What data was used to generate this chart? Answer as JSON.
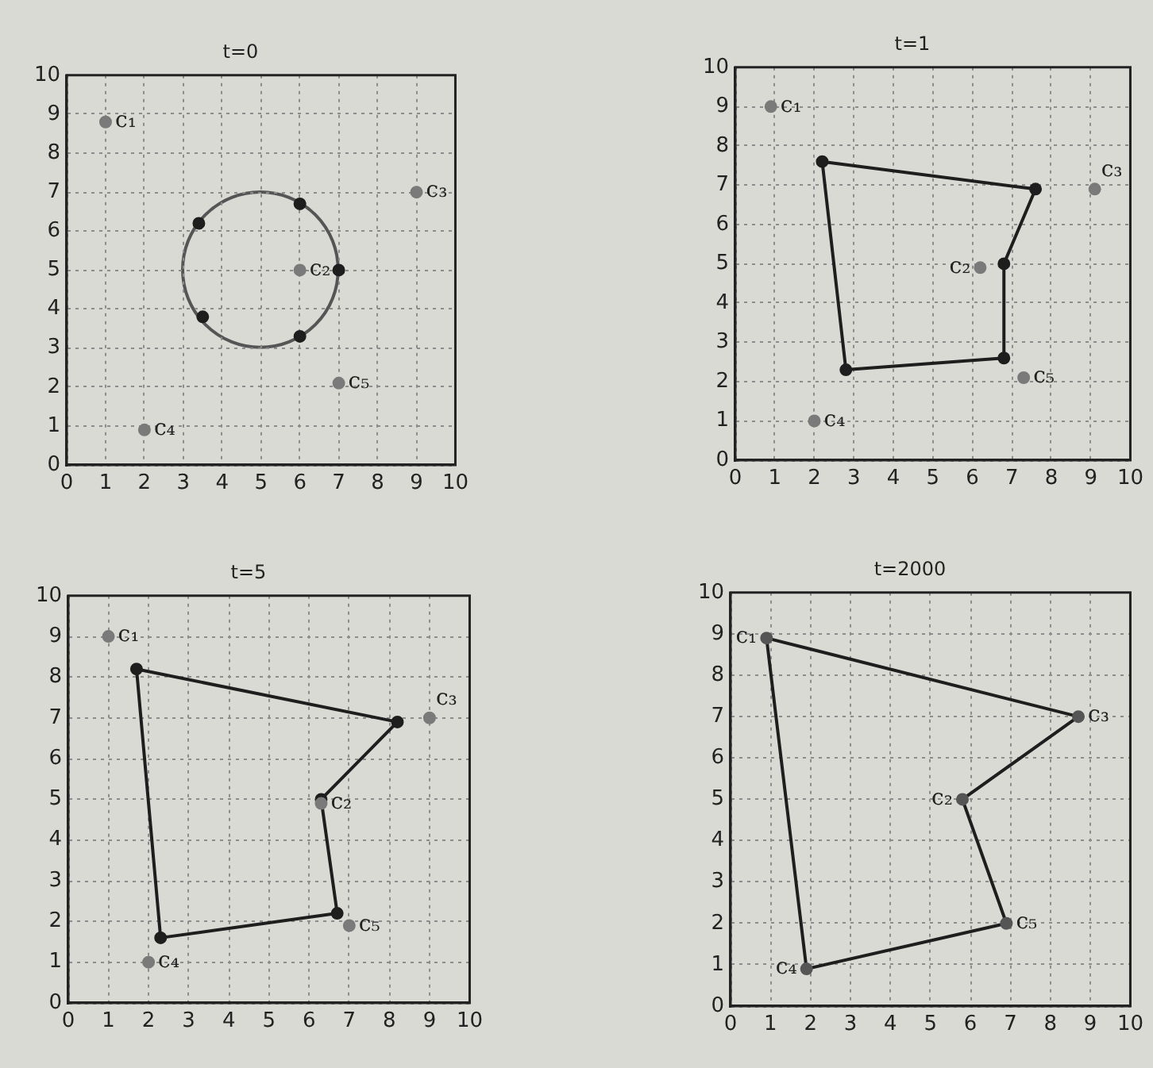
{
  "chart_data": [
    {
      "type": "scatter",
      "title": "t=0",
      "xlim": [
        0,
        10
      ],
      "ylim": [
        0,
        10
      ],
      "xticks": [
        0,
        1,
        2,
        3,
        4,
        5,
        6,
        7,
        8,
        9,
        10
      ],
      "yticks": [
        0,
        1,
        2,
        3,
        4,
        5,
        6,
        7,
        8,
        9,
        10
      ],
      "grid": true,
      "series": [
        {
          "type": "scatter",
          "color": "#1e1e1e",
          "marker": "circle",
          "x": [
            3.4,
            6,
            7,
            6,
            3.5
          ],
          "values": [
            6.2,
            6.7,
            5,
            3.3,
            3.8
          ]
        },
        {
          "type": "scatter",
          "color": "#7a7a7a",
          "marker": "circle",
          "x": [
            1,
            6,
            9,
            2,
            7
          ],
          "values": [
            8.8,
            5,
            7,
            0.9,
            2.1
          ]
        }
      ],
      "annotations": [
        {
          "text": "c₁",
          "x": 1,
          "y": 8.8
        },
        {
          "text": "c₂",
          "x": 6,
          "y": 5
        },
        {
          "text": "c₃",
          "x": 9,
          "y": 7
        },
        {
          "text": "c₄",
          "x": 2,
          "y": 0.9
        },
        {
          "text": "c₅",
          "x": 7,
          "y": 2.1
        }
      ]
    },
    {
      "type": "scatter",
      "title": "t=1",
      "xlim": [
        0,
        10
      ],
      "ylim": [
        0,
        10
      ],
      "xticks": [
        0,
        1,
        2,
        3,
        4,
        5,
        6,
        7,
        8,
        9,
        10
      ],
      "yticks": [
        0,
        1,
        2,
        3,
        4,
        5,
        6,
        7,
        8,
        9,
        10
      ],
      "grid": true,
      "series": [
        {
          "type": "line",
          "color": "#1e1e1e",
          "marker": "none",
          "x": [
            2.2,
            7.6
          ],
          "values": [
            7.6,
            6.9
          ]
        },
        {
          "type": "line",
          "color": "#1e1e1e",
          "marker": "none",
          "x": [
            7.6,
            6.8
          ],
          "values": [
            6.9,
            5
          ]
        },
        {
          "type": "line",
          "color": "#1e1e1e",
          "marker": "none",
          "x": [
            6.8,
            6.8
          ],
          "values": [
            5,
            2.6
          ]
        },
        {
          "type": "line",
          "color": "#1e1e1e",
          "marker": "none",
          "x": [
            6.8,
            2.8,
            2.2
          ],
          "values": [
            2.6,
            2.3,
            7.6
          ]
        },
        {
          "type": "scatter",
          "color": "#1e1e1e",
          "marker": "circle",
          "x": [
            2.2,
            7.6,
            6.8,
            6.8,
            2.8
          ],
          "values": [
            7.6,
            6.9,
            5,
            2.6,
            2.3
          ]
        },
        {
          "type": "scatter",
          "color": "#7a7a7a",
          "marker": "circle",
          "x": [
            0.9,
            6.2,
            9.1,
            2,
            7.3
          ],
          "values": [
            9,
            4.9,
            6.9,
            1,
            2.1
          ]
        }
      ],
      "annotations": [
        {
          "text": "c₁",
          "x": 0.9,
          "y": 9
        },
        {
          "text": "c₂",
          "x": 6.2,
          "y": 4.9
        },
        {
          "text": "c₃",
          "x": 9.1,
          "y": 6.9
        },
        {
          "text": "c₄",
          "x": 2,
          "y": 1
        },
        {
          "text": "c₅",
          "x": 7.3,
          "y": 2.1
        }
      ]
    },
    {
      "type": "scatter",
      "title": "t=5",
      "xlim": [
        0,
        10
      ],
      "ylim": [
        0,
        10
      ],
      "xticks": [
        0,
        1,
        2,
        3,
        4,
        5,
        6,
        7,
        8,
        9,
        10
      ],
      "yticks": [
        0,
        1,
        2,
        3,
        4,
        5,
        6,
        7,
        8,
        9,
        10
      ],
      "grid": true,
      "series": [
        {
          "type": "line",
          "color": "#1e1e1e",
          "marker": "none",
          "x": [
            1.7,
            8.2
          ],
          "values": [
            8.2,
            6.9
          ]
        },
        {
          "type": "line",
          "color": "#1e1e1e",
          "marker": "none",
          "x": [
            8.2,
            6.3
          ],
          "values": [
            6.9,
            5
          ]
        },
        {
          "type": "line",
          "color": "#1e1e1e",
          "marker": "none",
          "x": [
            6.3,
            6.7
          ],
          "values": [
            5,
            2.2
          ]
        },
        {
          "type": "line",
          "color": "#1e1e1e",
          "marker": "none",
          "x": [
            6.7,
            2.3,
            1.7
          ],
          "values": [
            2.2,
            1.6,
            8.2
          ]
        },
        {
          "type": "scatter",
          "color": "#1e1e1e",
          "marker": "circle",
          "x": [
            1.7,
            8.2,
            6.3,
            6.7,
            2.3
          ],
          "values": [
            8.2,
            6.9,
            5,
            2.2,
            1.6
          ]
        },
        {
          "type": "scatter",
          "color": "#7a7a7a",
          "marker": "circle",
          "x": [
            1,
            6.3,
            9,
            2,
            7
          ],
          "values": [
            9,
            4.9,
            7,
            1,
            1.9
          ]
        }
      ],
      "annotations": [
        {
          "text": "c₁",
          "x": 1,
          "y": 9
        },
        {
          "text": "c₂",
          "x": 6.3,
          "y": 4.9
        },
        {
          "text": "c₃",
          "x": 9,
          "y": 7
        },
        {
          "text": "c₄",
          "x": 2,
          "y": 1
        },
        {
          "text": "c₅",
          "x": 7,
          "y": 1.9
        }
      ]
    },
    {
      "type": "scatter",
      "title": "t=2000",
      "xlim": [
        0,
        10
      ],
      "ylim": [
        0,
        10
      ],
      "xticks": [
        0,
        1,
        2,
        3,
        4,
        5,
        6,
        7,
        8,
        9,
        10
      ],
      "yticks": [
        0,
        1,
        2,
        3,
        4,
        5,
        6,
        7,
        8,
        9,
        10
      ],
      "grid": true,
      "series": [
        {
          "type": "line",
          "color": "#1e1e1e",
          "marker": "none",
          "x": [
            0.9,
            8.7
          ],
          "values": [
            8.9,
            7
          ]
        },
        {
          "type": "line",
          "color": "#1e1e1e",
          "marker": "none",
          "x": [
            8.7,
            5.8
          ],
          "values": [
            7,
            5
          ]
        },
        {
          "type": "line",
          "color": "#1e1e1e",
          "marker": "none",
          "x": [
            5.8,
            6.9
          ],
          "values": [
            5,
            2
          ]
        },
        {
          "type": "line",
          "color": "#1e1e1e",
          "marker": "none",
          "x": [
            6.9,
            1.9,
            0.9
          ],
          "values": [
            2,
            0.9,
            8.9
          ]
        },
        {
          "type": "scatter",
          "color": "#555555",
          "marker": "circle",
          "x": [
            0.9,
            8.7,
            5.8,
            6.9,
            1.9
          ],
          "values": [
            8.9,
            7,
            5,
            2,
            0.9
          ]
        }
      ],
      "annotations": [
        {
          "text": "c₁",
          "x": 0.9,
          "y": 8.9
        },
        {
          "text": "c₃",
          "x": 8.7,
          "y": 7
        },
        {
          "text": "c₂",
          "x": 5.8,
          "y": 5
        },
        {
          "text": "c₅",
          "x": 6.9,
          "y": 2
        },
        {
          "text": "c₄",
          "x": 1.9,
          "y": 0.9
        }
      ]
    }
  ]
}
